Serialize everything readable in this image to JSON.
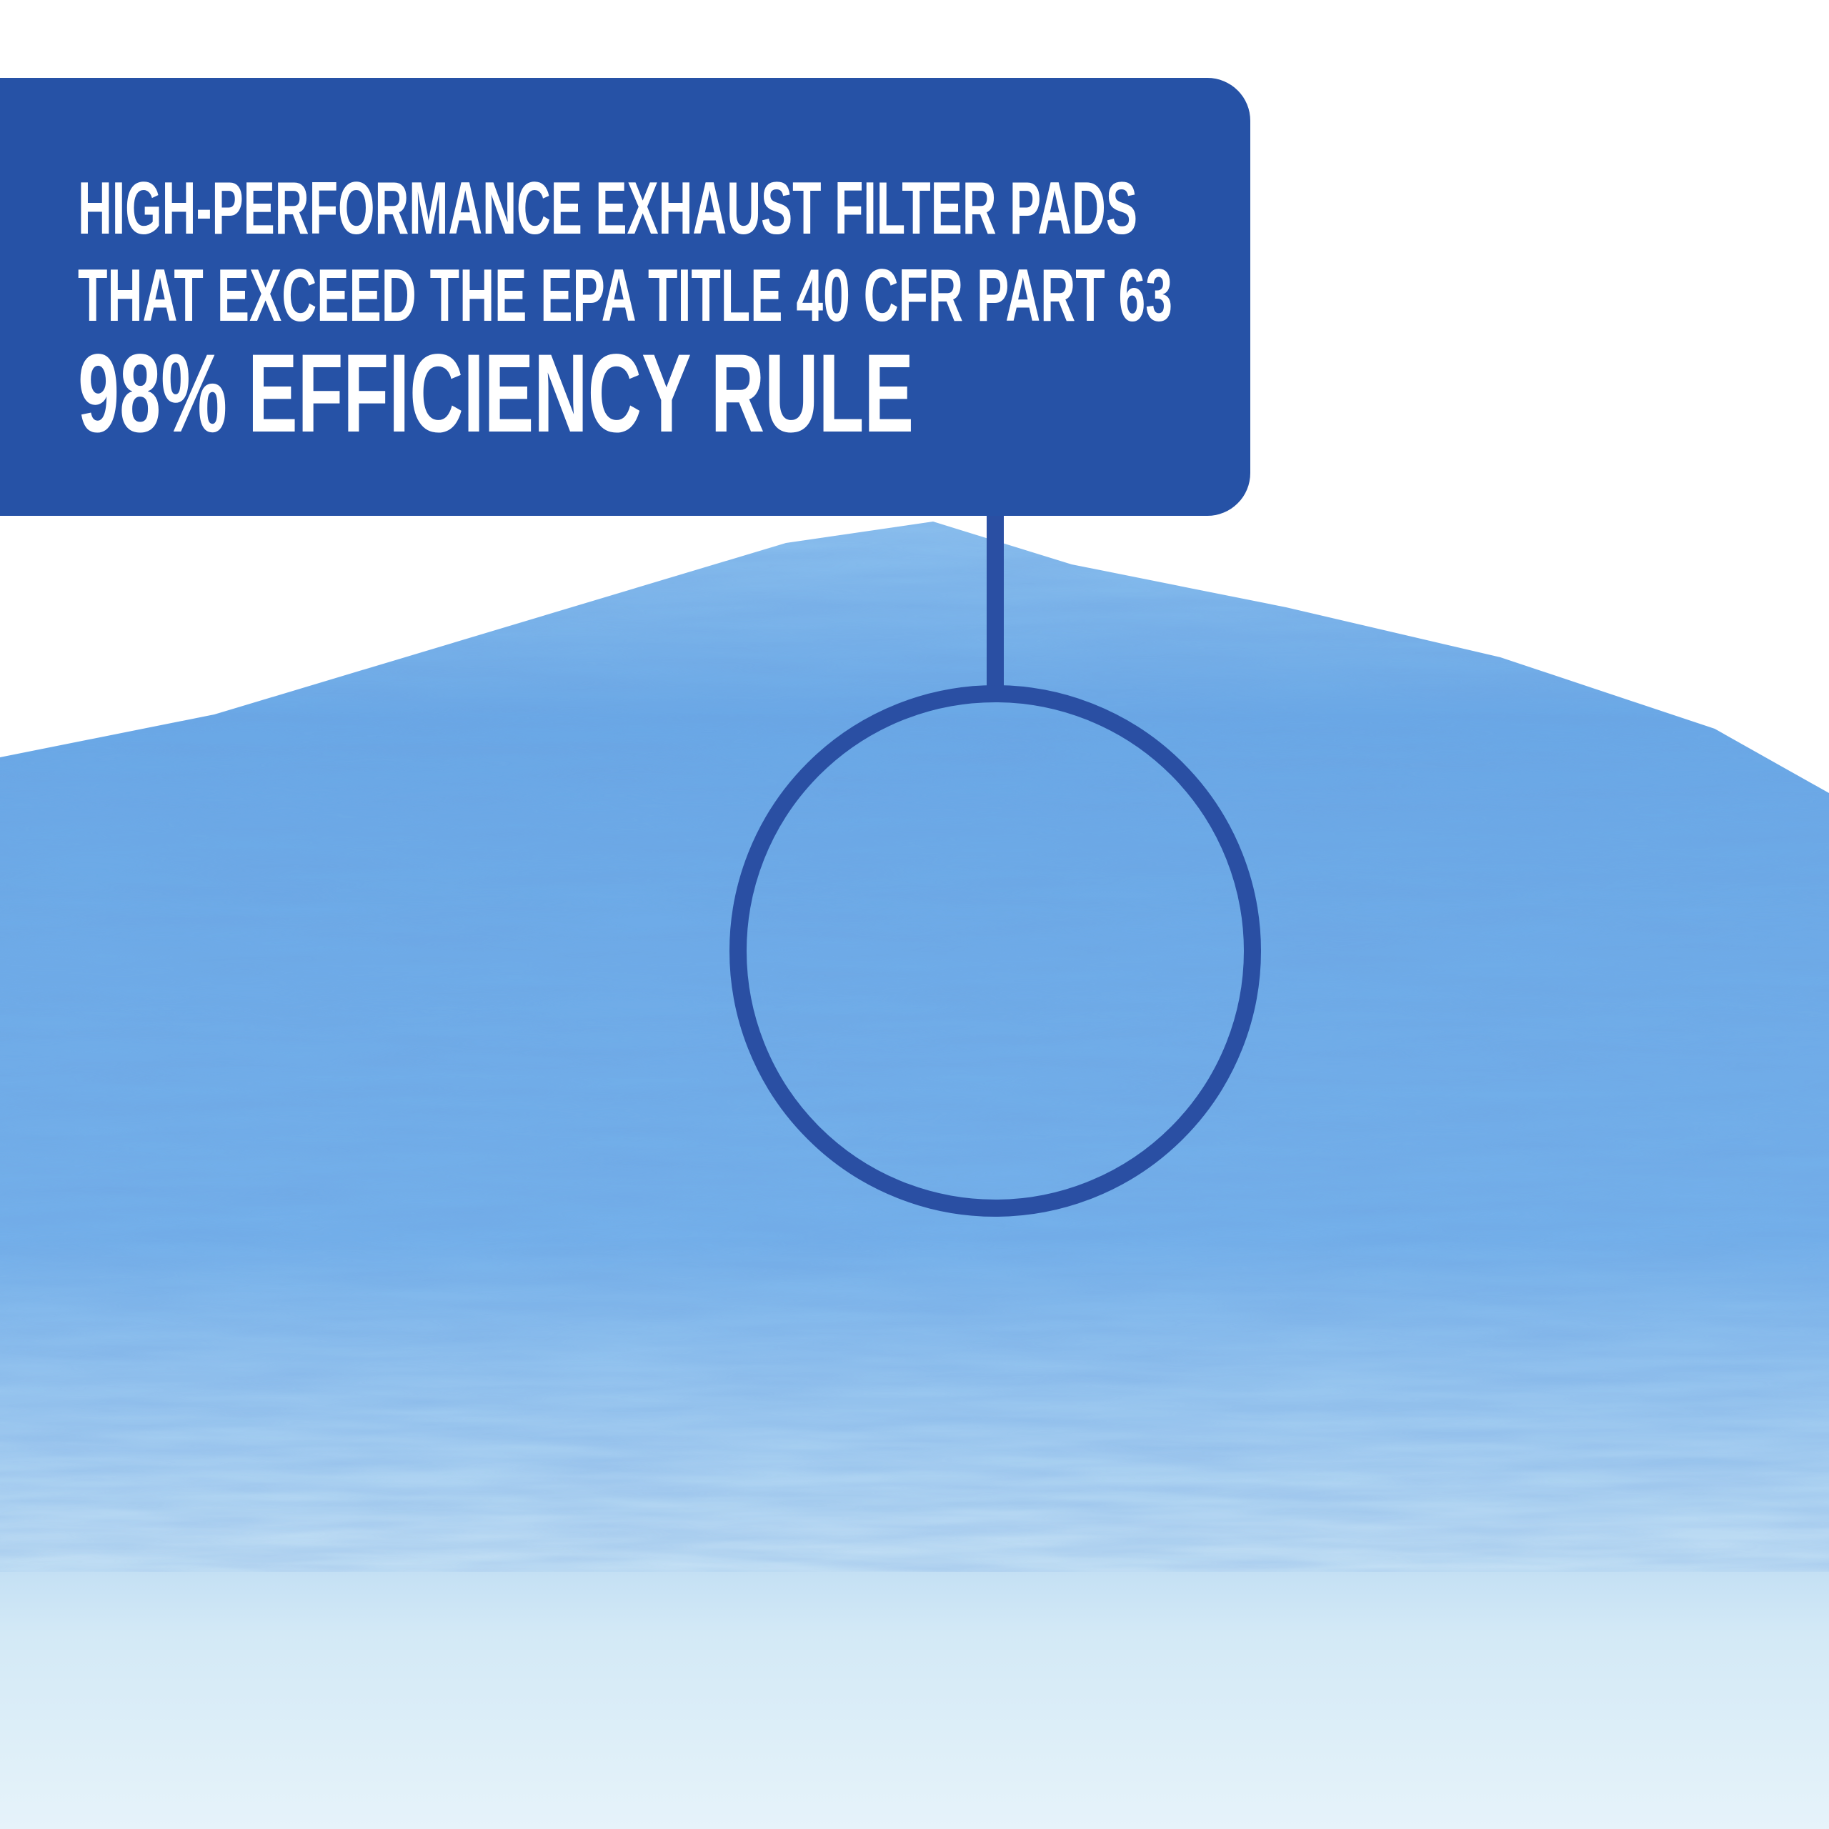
{
  "banner": {
    "line1": "HIGH-PERFORMANCE EXHAUST FILTER PADS",
    "line2": "THAT EXCEED THE EPA TITLE 40 CFR PART 63",
    "line3": "98% EFFICIENCY RULE"
  },
  "colors": {
    "banner": "#2652a6",
    "callout": "#2a4fa3",
    "pad_blue": "#6aa8e6",
    "pad_light": "#d3e9f6"
  },
  "image": {
    "subject": "blue-white-fiber-filter-pad"
  }
}
